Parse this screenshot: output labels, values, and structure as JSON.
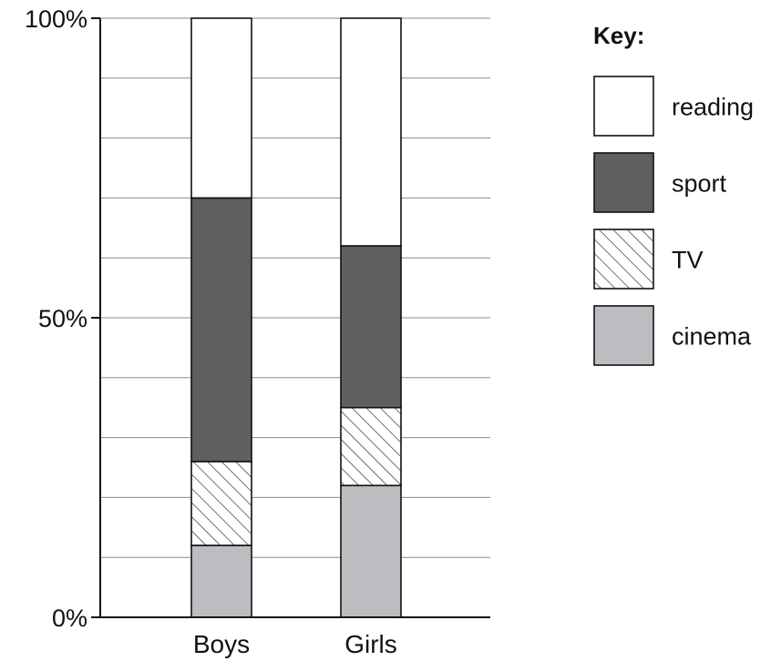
{
  "chart_data": {
    "type": "bar",
    "stacked": true,
    "categories": [
      "Boys",
      "Girls"
    ],
    "series": [
      {
        "name": "cinema",
        "values": [
          12,
          22
        ],
        "color": "#bcbdc0",
        "pattern": "solid"
      },
      {
        "name": "TV",
        "values": [
          14,
          13
        ],
        "color": "#ffffff",
        "pattern": "hatch"
      },
      {
        "name": "sport",
        "values": [
          44,
          27
        ],
        "color": "#5e5f61",
        "pattern": "solid"
      },
      {
        "name": "reading",
        "values": [
          30,
          38
        ],
        "color": "#ffffff",
        "pattern": "solid"
      }
    ],
    "ylim": [
      0,
      100
    ],
    "y_ticks": [
      {
        "value": 0,
        "label": "0%"
      },
      {
        "value": 50,
        "label": "50%"
      },
      {
        "value": 100,
        "label": "100%"
      }
    ],
    "gridlines_every": 10,
    "grid": true,
    "legend": {
      "title": "Key:",
      "placement": "right",
      "order": [
        "reading",
        "sport",
        "TV",
        "cinema"
      ]
    }
  }
}
